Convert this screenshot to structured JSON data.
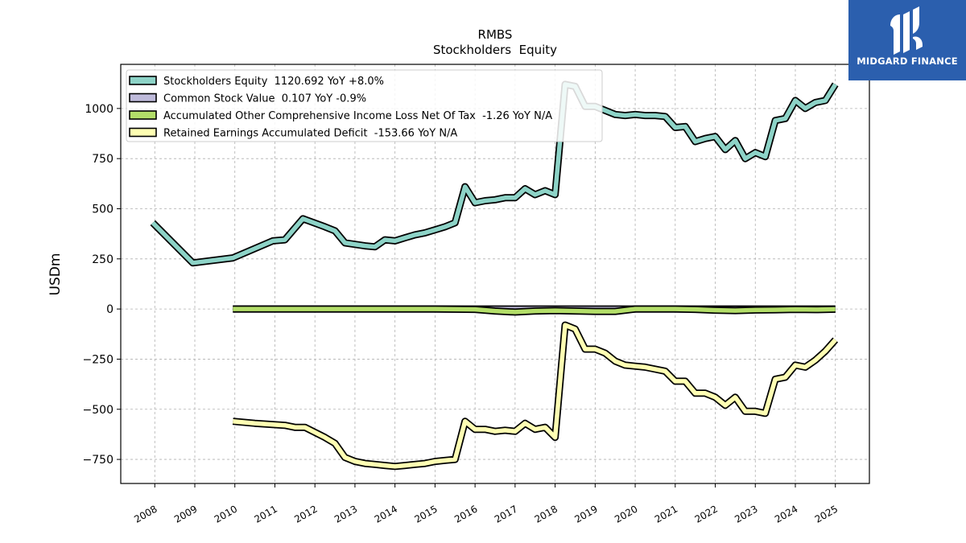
{
  "brand": {
    "name": "MIDGARD FINANCE",
    "bg_color": "#2b5fae",
    "text_color": "#ffffff",
    "icon": "midgard-logo-icon"
  },
  "chart_data": {
    "type": "line",
    "title": "RMBS",
    "subtitle": "Stockholders  Equity",
    "ylabel": "USDm",
    "xlabel": "",
    "ylim": [
      -870,
      1220
    ],
    "xlim": [
      2007.15,
      2025.85
    ],
    "yticks": [
      -750,
      -500,
      -250,
      0,
      250,
      500,
      750,
      1000
    ],
    "ytick_labels": [
      "−750",
      "−500",
      "−250",
      "0",
      "250",
      "500",
      "750",
      "1000"
    ],
    "xticks": [
      2008,
      2009,
      2010,
      2011,
      2012,
      2013,
      2014,
      2015,
      2016,
      2017,
      2018,
      2019,
      2020,
      2021,
      2022,
      2023,
      2024,
      2025
    ],
    "xtick_labels": [
      "2008",
      "2009",
      "2010",
      "2011",
      "2012",
      "2013",
      "2014",
      "2015",
      "2016",
      "2017",
      "2018",
      "2019",
      "2020",
      "2021",
      "2022",
      "2023",
      "2024",
      "2025"
    ],
    "grid": true,
    "legend_position": "top-left",
    "series": [
      {
        "name": "Stockholders Equity  1120.692 YoY +8.0%",
        "color": "#8dd3c7",
        "x": [
          2007.95,
          2008.95,
          2009.95,
          2010.95,
          2011.25,
          2011.7,
          2012.25,
          2012.5,
          2012.75,
          2013.25,
          2013.5,
          2013.75,
          2014.0,
          2014.25,
          2014.5,
          2014.75,
          2015.0,
          2015.25,
          2015.5,
          2015.75,
          2016.0,
          2016.25,
          2016.5,
          2016.75,
          2017.0,
          2017.25,
          2017.5,
          2017.75,
          2018.0,
          2018.25,
          2018.5,
          2018.75,
          2019.0,
          2019.25,
          2019.5,
          2019.75,
          2020.0,
          2020.25,
          2020.5,
          2020.75,
          2021.0,
          2021.25,
          2021.5,
          2021.75,
          2022.0,
          2022.25,
          2022.5,
          2022.75,
          2023.0,
          2023.25,
          2023.5,
          2023.75,
          2024.0,
          2024.25,
          2024.5,
          2024.75,
          2025.0
        ],
        "y": [
          430,
          230,
          255,
          340,
          345,
          450,
          410,
          390,
          330,
          315,
          310,
          345,
          340,
          355,
          370,
          380,
          395,
          410,
          430,
          610,
          530,
          540,
          545,
          555,
          555,
          600,
          570,
          590,
          570,
          1120,
          1110,
          1010,
          1010,
          990,
          970,
          965,
          970,
          965,
          965,
          960,
          905,
          910,
          835,
          850,
          860,
          795,
          840,
          750,
          780,
          760,
          940,
          950,
          1040,
          1000,
          1030,
          1040,
          1120
        ]
      },
      {
        "name": "Common Stock Value  0.107 YoY -0.9%",
        "color": "#bebada",
        "x": [
          2009.95,
          2025.0
        ],
        "y": [
          0.1,
          0.107
        ]
      },
      {
        "name": "Accumulated Other Comprehensive Income Loss Net Of Tax  -1.26 YoY N/A",
        "color": "#b3de69",
        "x": [
          2009.95,
          2011.0,
          2012.0,
          2013.0,
          2014.0,
          2015.0,
          2016.0,
          2016.5,
          2017.0,
          2017.5,
          2018.0,
          2018.5,
          2019.0,
          2019.5,
          2020.0,
          2020.5,
          2021.0,
          2021.5,
          2022.0,
          2022.5,
          2023.0,
          2023.5,
          2024.0,
          2024.5,
          2025.0
        ],
        "y": [
          0,
          0,
          0,
          0,
          0,
          0,
          -2,
          -10,
          -15,
          -10,
          -8,
          -10,
          -12,
          -12,
          0,
          0,
          0,
          -2,
          -6,
          -8,
          -5,
          -4,
          -2,
          -3,
          -1.26
        ]
      },
      {
        "name": "Retained Earnings Accumulated Deficit  -153.66 YoY N/A",
        "color": "#ffffb3",
        "x": [
          2009.95,
          2010.5,
          2011.25,
          2011.5,
          2011.75,
          2012.25,
          2012.5,
          2012.75,
          2013.0,
          2013.25,
          2013.5,
          2013.75,
          2014.0,
          2014.25,
          2014.5,
          2014.75,
          2015.0,
          2015.25,
          2015.5,
          2015.75,
          2016.0,
          2016.25,
          2016.5,
          2016.75,
          2017.0,
          2017.25,
          2017.5,
          2017.75,
          2018.0,
          2018.25,
          2018.5,
          2018.75,
          2019.0,
          2019.25,
          2019.5,
          2019.75,
          2020.0,
          2020.25,
          2020.5,
          2020.75,
          2021.0,
          2021.25,
          2021.5,
          2021.75,
          2022.0,
          2022.25,
          2022.5,
          2022.75,
          2023.0,
          2023.25,
          2023.5,
          2023.75,
          2024.0,
          2024.25,
          2024.5,
          2024.75,
          2025.0
        ],
        "y": [
          -560,
          -570,
          -580,
          -590,
          -590,
          -640,
          -670,
          -740,
          -760,
          -770,
          -775,
          -780,
          -785,
          -780,
          -775,
          -770,
          -760,
          -755,
          -750,
          -560,
          -600,
          -600,
          -610,
          -605,
          -610,
          -570,
          -600,
          -590,
          -640,
          -80,
          -100,
          -200,
          -200,
          -220,
          -260,
          -280,
          -285,
          -290,
          -300,
          -310,
          -360,
          -360,
          -420,
          -420,
          -440,
          -480,
          -440,
          -510,
          -510,
          -520,
          -350,
          -340,
          -280,
          -290,
          -255,
          -210,
          -154
        ]
      }
    ]
  }
}
